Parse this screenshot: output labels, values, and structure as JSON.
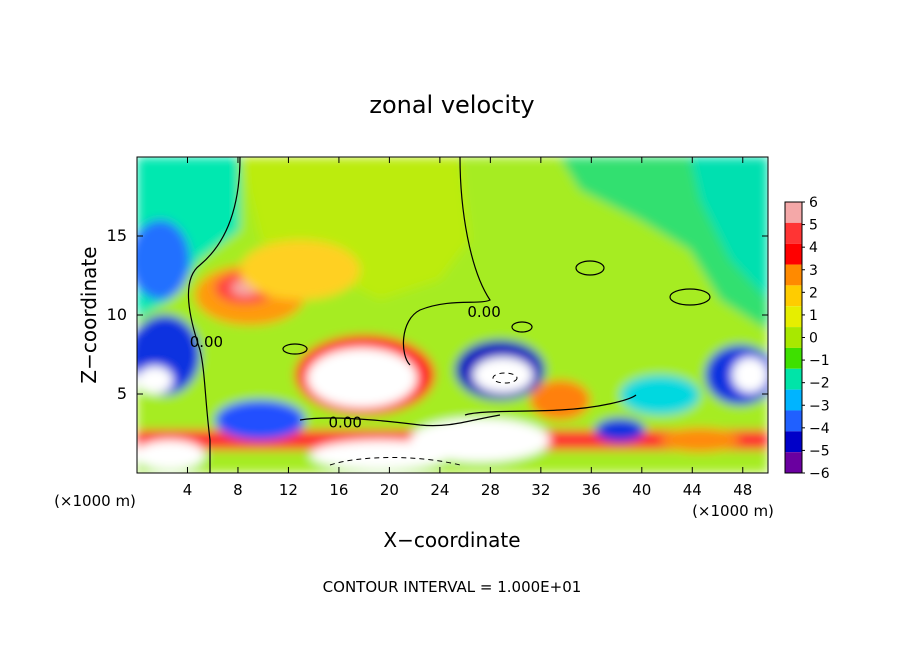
{
  "chart_data": {
    "type": "heatmap",
    "title": "zonal velocity",
    "xlabel": "X−coordinate",
    "ylabel": "Z−coordinate",
    "x_unit": "(×1000 m)",
    "x_unit_right": "(×1000 m)",
    "xlim": [
      0,
      50
    ],
    "ylim": [
      0,
      20
    ],
    "x_ticks": [
      4,
      8,
      12,
      16,
      20,
      24,
      28,
      32,
      36,
      40,
      44,
      48
    ],
    "y_ticks": [
      5,
      10,
      15
    ],
    "colorbar": {
      "min": -6,
      "max": 6,
      "ticks": [
        "6",
        "5",
        "4",
        "3",
        "2",
        "1",
        "0",
        "−1",
        "−2",
        "−3",
        "−4",
        "−5",
        "−6"
      ],
      "colors": [
        "#f4a8a8",
        "#ff3434",
        "#ff0000",
        "#ff8a00",
        "#ffcc00",
        "#e6ee00",
        "#a8e800",
        "#3ee000",
        "#00e4a8",
        "#00b4ff",
        "#2060ff",
        "#0000c8",
        "#6a00a0"
      ]
    },
    "contour_labels": [
      {
        "text": "0.00",
        "x": 27.5,
        "z": 10.2
      },
      {
        "text": "0.00",
        "x": 5.5,
        "z": 8.3
      },
      {
        "text": "0.00",
        "x": 16.5,
        "z": 3.2
      }
    ],
    "contour_interval": "1.000E+01",
    "grid": false
  },
  "footer": {
    "contour_interval_text": "CONTOUR INTERVAL = 1.000E+01"
  }
}
